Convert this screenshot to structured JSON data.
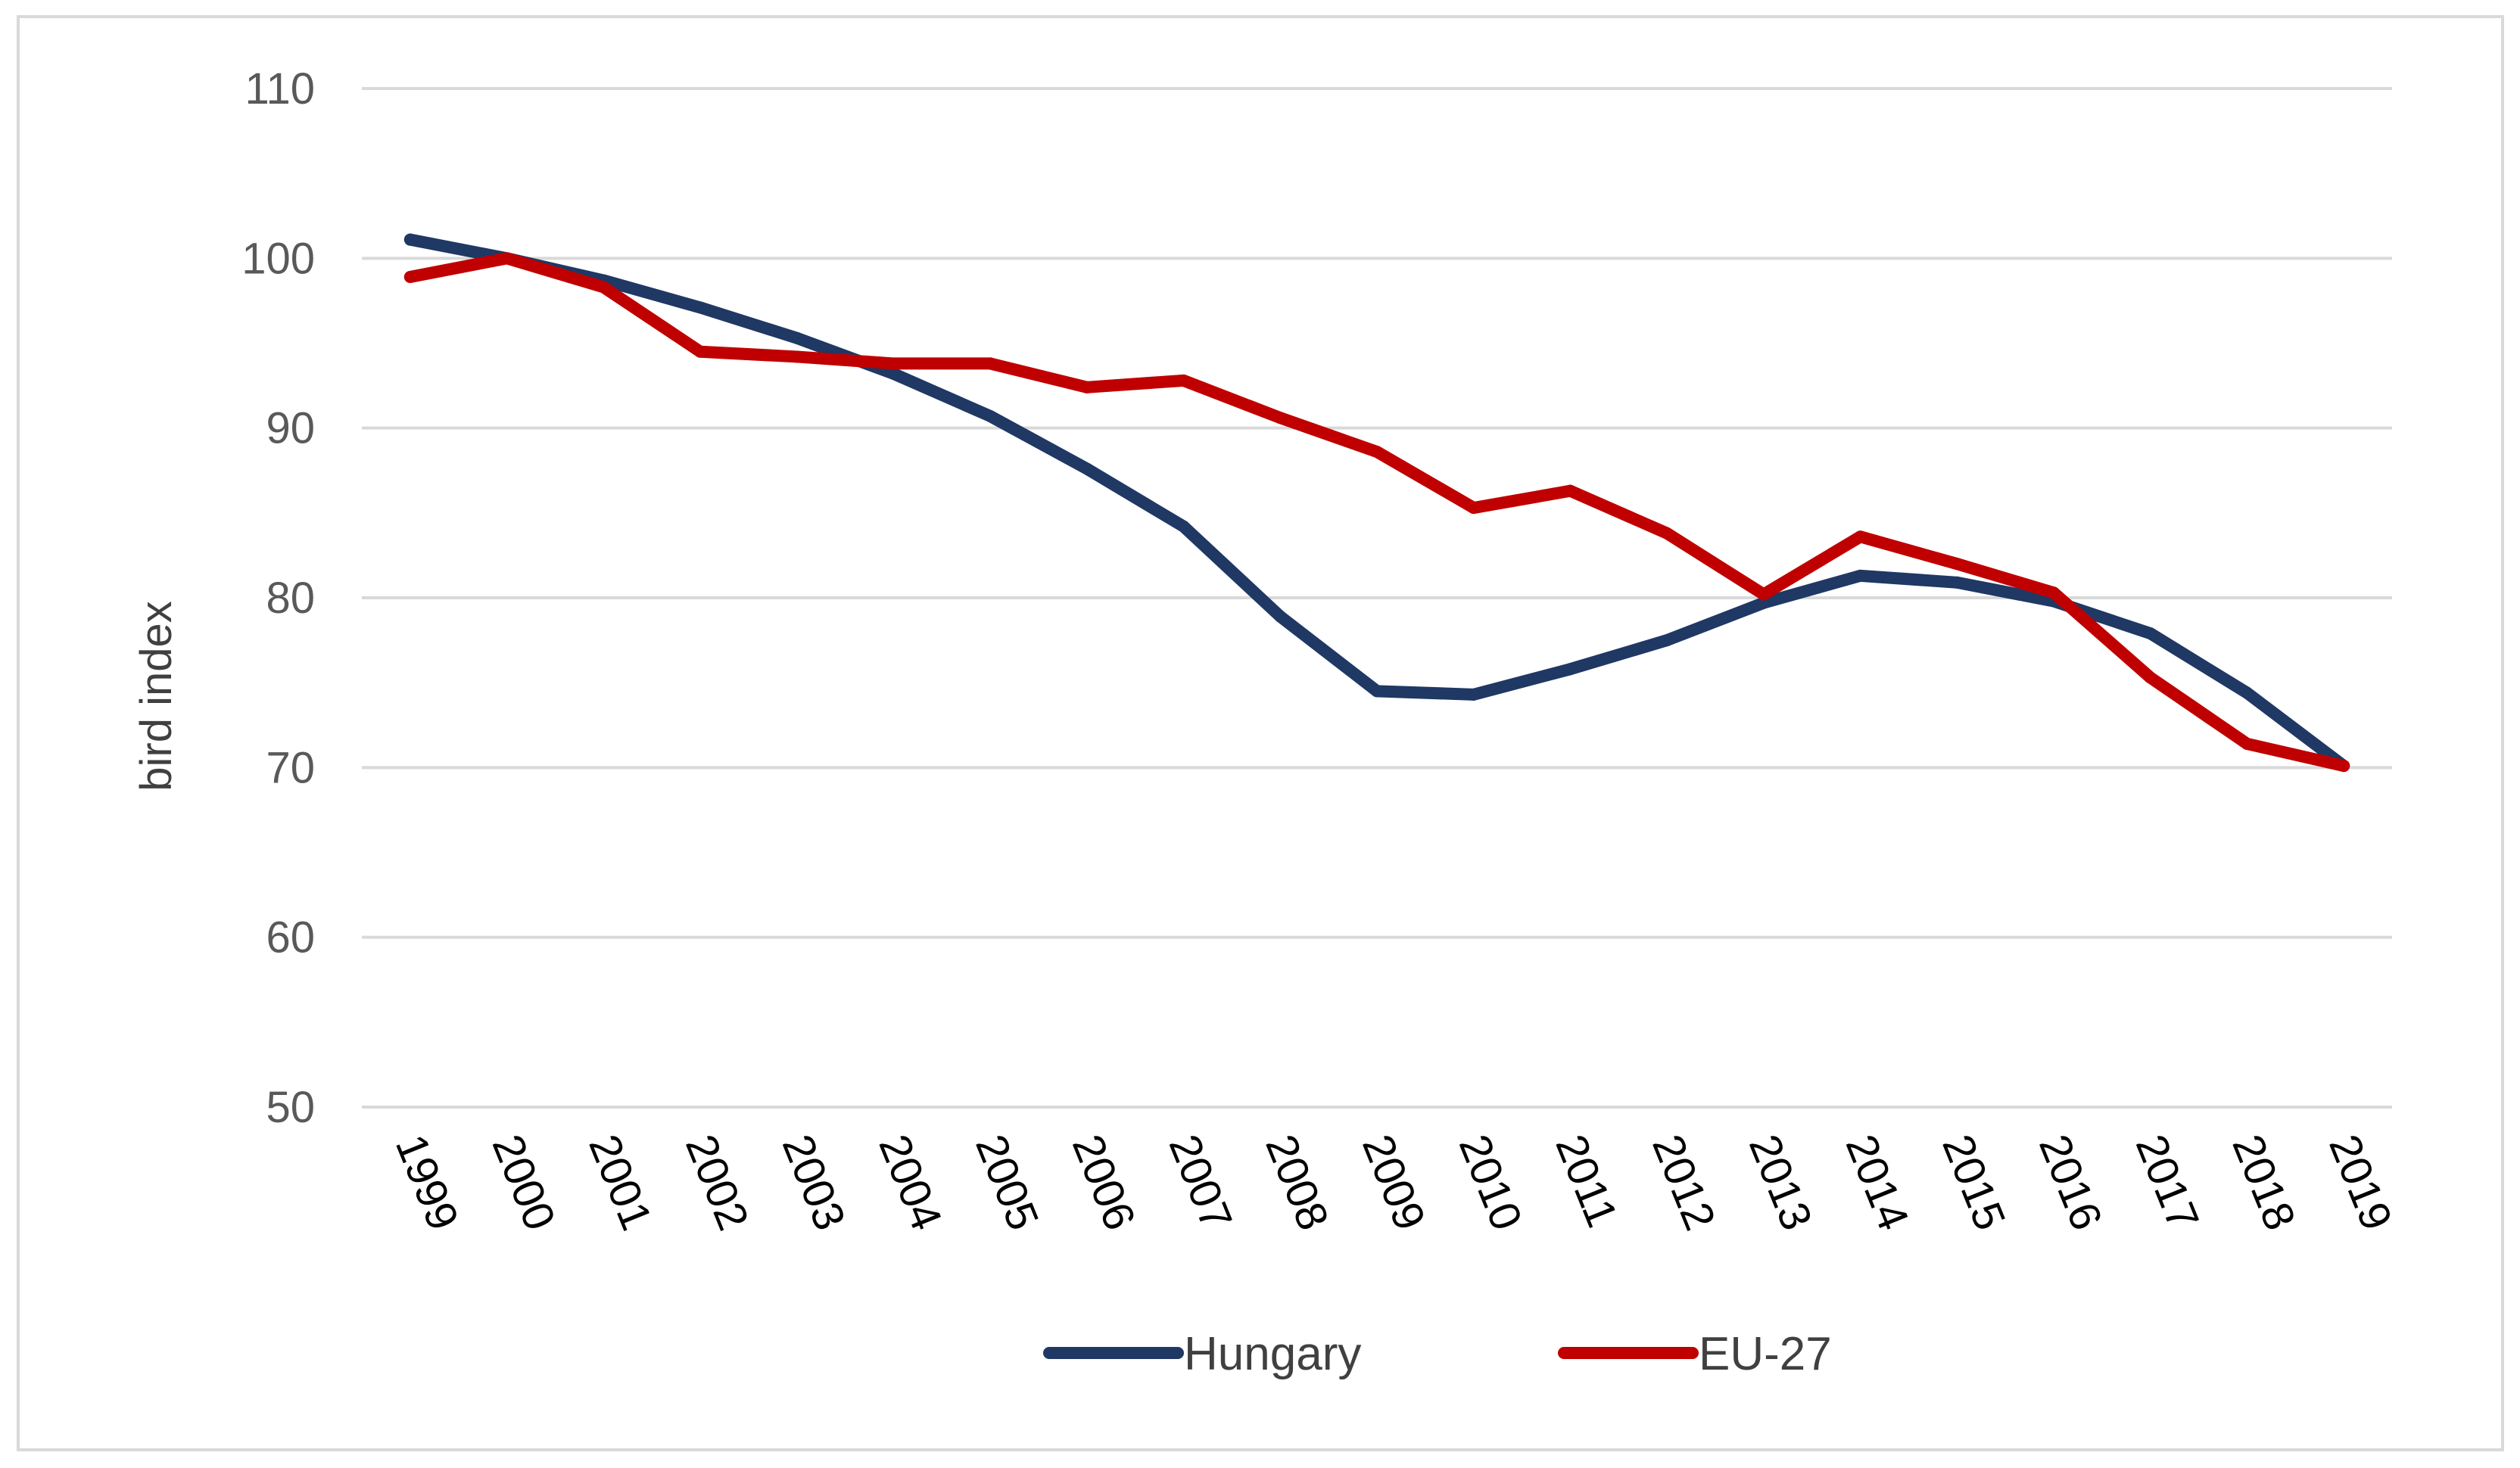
{
  "chart_data": {
    "type": "line",
    "title": "",
    "xlabel": "",
    "ylabel": "bird index",
    "ylim": [
      50,
      110
    ],
    "yticks": [
      50,
      60,
      70,
      80,
      90,
      100,
      110
    ],
    "grid": true,
    "legend_position": "bottom",
    "categories": [
      "1999",
      "2000",
      "2001",
      "2002",
      "2003",
      "2004",
      "2005",
      "2006",
      "2007",
      "2008",
      "2009",
      "2010",
      "2011",
      "2012",
      "2013",
      "2014",
      "2015",
      "2016",
      "2017",
      "2018",
      "2019"
    ],
    "series": [
      {
        "name": "Hungary",
        "color": "#1f3864",
        "values": [
          101.1,
          100.0,
          98.7,
          97.1,
          95.3,
          93.2,
          90.7,
          87.6,
          84.2,
          78.9,
          74.5,
          74.3,
          75.8,
          77.5,
          79.7,
          81.3,
          80.9,
          79.8,
          77.9,
          74.4,
          70.1
        ]
      },
      {
        "name": "EU-27",
        "color": "#c00000",
        "values": [
          98.9,
          100.0,
          98.3,
          94.5,
          94.2,
          93.8,
          93.8,
          92.4,
          92.8,
          90.6,
          88.6,
          85.3,
          86.3,
          83.8,
          80.2,
          83.6,
          82.0,
          80.3,
          75.3,
          71.4,
          70.1
        ]
      }
    ]
  }
}
